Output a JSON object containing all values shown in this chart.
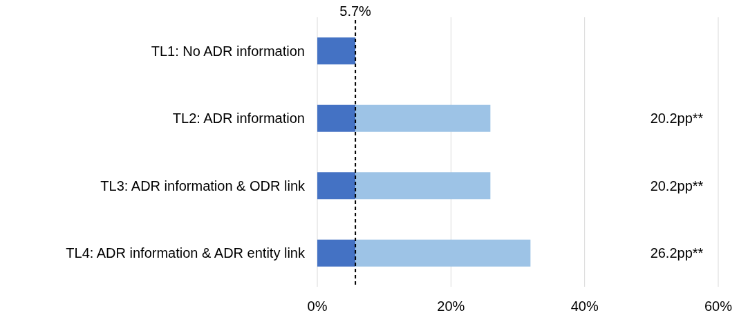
{
  "chart_data": {
    "type": "bar",
    "orientation": "horizontal",
    "stacked": true,
    "categories": [
      "TL1: No ADR information",
      "TL2: ADR information",
      "TL3: ADR information & ODR link",
      "TL4: ADR information & ADR entity link"
    ],
    "series": [
      {
        "color": "#4472c4",
        "values": [
          5.7,
          5.7,
          5.7,
          5.7
        ]
      },
      {
        "color": "#9dc3e6",
        "values": [
          0,
          20.2,
          20.2,
          26.2
        ]
      }
    ],
    "xlim": [
      0,
      60
    ],
    "xticks": [
      {
        "value": 0,
        "label": "0%"
      },
      {
        "value": 20,
        "label": "20%"
      },
      {
        "value": 40,
        "label": "40%"
      },
      {
        "value": 60,
        "label": "60%"
      }
    ],
    "grid": "x",
    "annotations": [
      "20.2pp**",
      "20.2pp**",
      "26.2pp**"
    ],
    "ref_lines": [
      {
        "axis": "x",
        "value": 5.7,
        "label": "5.7%",
        "color": "#000000",
        "line_style": "dashed"
      }
    ]
  }
}
